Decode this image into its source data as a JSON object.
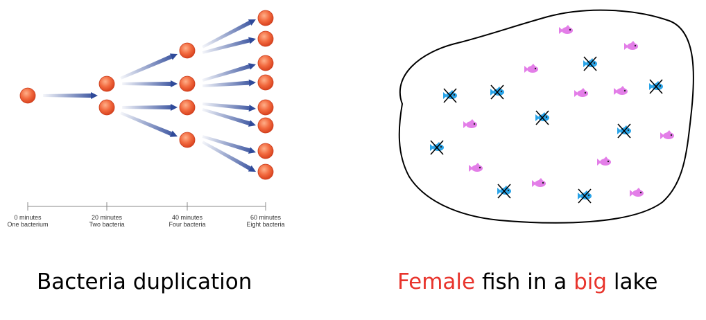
{
  "bacteria_diagram": {
    "timeline": [
      {
        "minutes": "0 minutes",
        "count": "One bacterium"
      },
      {
        "minutes": "20 minutes",
        "count": "Two bacteria"
      },
      {
        "minutes": "40 minutes",
        "count": "Four bacteria"
      },
      {
        "minutes": "60 minutes",
        "count": "Eight bacteria"
      }
    ],
    "cells_per_stage": [
      1,
      2,
      4,
      8
    ],
    "cell_color": "#f26a3f",
    "arrow_color": "#2f4a9a"
  },
  "lake_diagram": {
    "female_fish_count": 12,
    "crossed_male_fish_count": 10,
    "female_color": "#e37ee8",
    "male_color": "#2aa4e8"
  },
  "captions": {
    "left": "Bacteria duplication",
    "right_part1": "Female",
    "right_part2": " fish in a ",
    "right_part3": "big",
    "right_part4": " lake",
    "highlight_color": "#e8342c"
  }
}
